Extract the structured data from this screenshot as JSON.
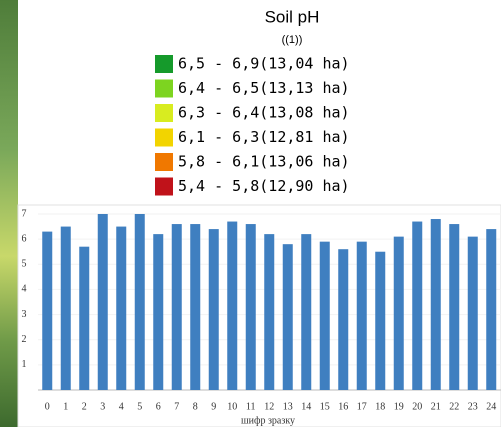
{
  "panel": {
    "title": "Soil pH",
    "subtitle": "((1))",
    "items": [
      {
        "label": "6,5 - 6,9(13,04 ha)",
        "color": "#159a2b"
      },
      {
        "label": "6,4 - 6,5(13,13 ha)",
        "color": "#7dd420"
      },
      {
        "label": "6,3 - 6,4(13,08 ha)",
        "color": "#d8ec20"
      },
      {
        "label": "6,1 - 6,3(12,81 ha)",
        "color": "#f2d400"
      },
      {
        "label": "5,8 - 6,1(13,06 ha)",
        "color": "#f07800"
      },
      {
        "label": "5,4 - 5,8(12,90 ha)",
        "color": "#c0121a"
      }
    ]
  },
  "chart_data": {
    "type": "bar",
    "x_label": "шифр зразку",
    "categories": [
      "0",
      "1",
      "2",
      "3",
      "4",
      "5",
      "6",
      "7",
      "8",
      "9",
      "10",
      "11",
      "12",
      "13",
      "14",
      "15",
      "16",
      "17",
      "18",
      "19",
      "20",
      "21",
      "22",
      "23",
      "24"
    ],
    "values": [
      6.3,
      6.5,
      5.7,
      7.0,
      6.5,
      7.0,
      6.2,
      6.6,
      6.6,
      6.4,
      6.7,
      6.6,
      6.2,
      5.8,
      6.2,
      5.9,
      5.6,
      5.9,
      5.5,
      6.1,
      6.7,
      6.8,
      6.6,
      6.1,
      6.4
    ],
    "color": "#3f7fc0",
    "ylim": [
      0,
      7
    ],
    "yticks": [
      1,
      2,
      3,
      4,
      5,
      6,
      7
    ],
    "grid": true
  }
}
